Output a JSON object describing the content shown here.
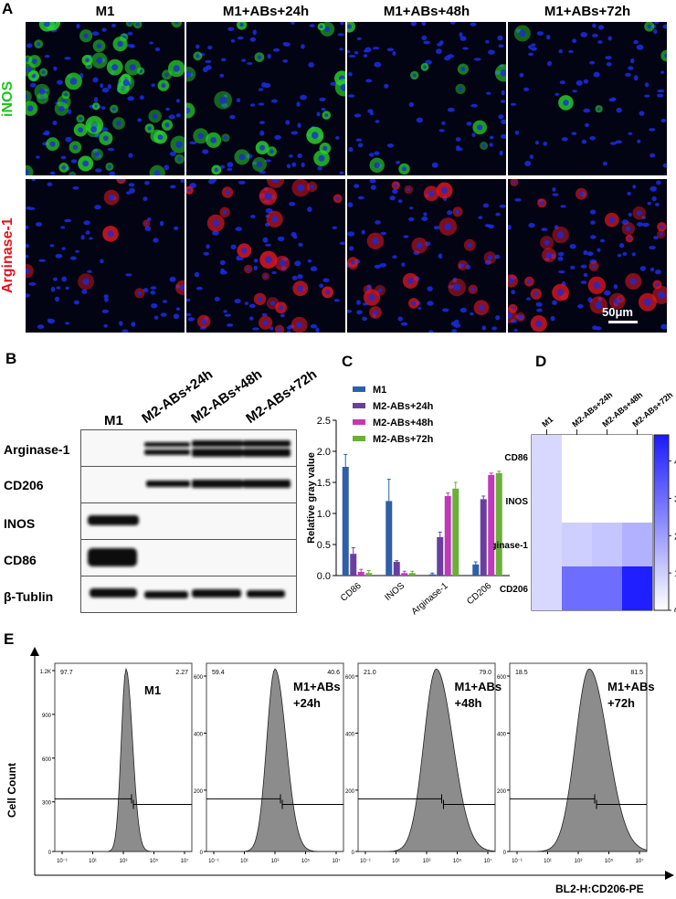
{
  "panels": {
    "A": {
      "label": "A",
      "columns": [
        "M1",
        "M1+ABs+24h",
        "M1+ABs+48h",
        "M1+ABs+72h"
      ],
      "rows": [
        "iNOS",
        "Arginase-1"
      ],
      "row_colors": [
        "#1fc41f",
        "#e0141e"
      ],
      "scale_bar": "50μm"
    },
    "B": {
      "label": "B",
      "lanes": [
        "M1",
        "M2-ABs+24h",
        "M2-ABs+48h",
        "M2-ABs+72h"
      ],
      "rows": [
        "Arginase-1",
        "CD206",
        "INOS",
        "CD86",
        "β-Tublin"
      ]
    },
    "C": {
      "label": "C"
    },
    "D": {
      "label": "D"
    },
    "E": {
      "label": "E",
      "ylabel": "Cell Count",
      "xlabel": "BL2-H:CD206-PE",
      "histograms": [
        {
          "name": "M1",
          "left_pct": "97.7",
          "right_pct": "2.27",
          "yticks": [
            "1.2K",
            "900",
            "600",
            "300",
            "0"
          ]
        },
        {
          "name": "M1+ABs\n+24h",
          "name_line1": "M1+ABs",
          "name_line2": "+24h",
          "left_pct": "59.4",
          "right_pct": "40.6",
          "yticks": [
            "600",
            "400",
            "200",
            "0"
          ]
        },
        {
          "name": "M1+ABs\n+48h",
          "name_line1": "M1+ABs",
          "name_line2": "+48h",
          "left_pct": "21.0",
          "right_pct": "79.0",
          "yticks": [
            "600",
            "400",
            "200",
            "0"
          ]
        },
        {
          "name": "M1+ABs\n+72h",
          "name_line1": "M1+ABs",
          "name_line2": "+72h",
          "left_pct": "18.5",
          "right_pct": "81.5",
          "yticks": [
            "600",
            "400",
            "200",
            "0"
          ]
        }
      ],
      "xticks": [
        "10⁻¹",
        "10¹",
        "10³",
        "10⁵",
        "10⁷"
      ]
    }
  },
  "chart_data": [
    {
      "type": "bar",
      "categories": [
        "CD86",
        "INOS",
        "Arginase-1",
        "CD206"
      ],
      "series": [
        {
          "name": "M1",
          "color": "#2e5fa8",
          "values": [
            1.75,
            1.2,
            0.02,
            0.18
          ],
          "errors": [
            0.2,
            0.35,
            0.02,
            0.04
          ]
        },
        {
          "name": "M2-ABs+24h",
          "color": "#6a3ea1",
          "values": [
            0.35,
            0.22,
            0.62,
            1.23
          ],
          "errors": [
            0.1,
            0.02,
            0.08,
            0.05
          ]
        },
        {
          "name": "M2-ABs+48h",
          "color": "#c039b8",
          "values": [
            0.06,
            0.04,
            1.28,
            1.62
          ],
          "errors": [
            0.04,
            0.03,
            0.05,
            0.03
          ]
        },
        {
          "name": "M2-ABs+72h",
          "color": "#6aaf3a",
          "values": [
            0.04,
            0.04,
            1.4,
            1.65
          ],
          "errors": [
            0.04,
            0.03,
            0.1,
            0.03
          ]
        }
      ],
      "ylabel": "Relative gray value",
      "ylim": [
        0,
        2.5
      ],
      "yticks": [
        "0.0",
        "0.5",
        "1.0",
        "1.5",
        "2.0",
        "2.5"
      ]
    },
    {
      "type": "heatmap",
      "rows": [
        "CD86",
        "INOS",
        "Arginase-1",
        "CD206"
      ],
      "columns": [
        "M1",
        "M2-ABs+24h",
        "M2-ABs+48h",
        "M2-ABs+72h"
      ],
      "values": [
        [
          0.8,
          0.0,
          0.0,
          0.0
        ],
        [
          0.8,
          0.0,
          0.0,
          0.0
        ],
        [
          0.8,
          1.0,
          1.2,
          1.6
        ],
        [
          0.8,
          3.0,
          3.0,
          4.6
        ]
      ],
      "colorbar": {
        "min": 0,
        "max": 4.7,
        "ticks": [
          "0",
          "1",
          "2",
          "3",
          "4"
        ],
        "low_color": "#ffffff",
        "high_color": "#1a1aff"
      }
    }
  ]
}
